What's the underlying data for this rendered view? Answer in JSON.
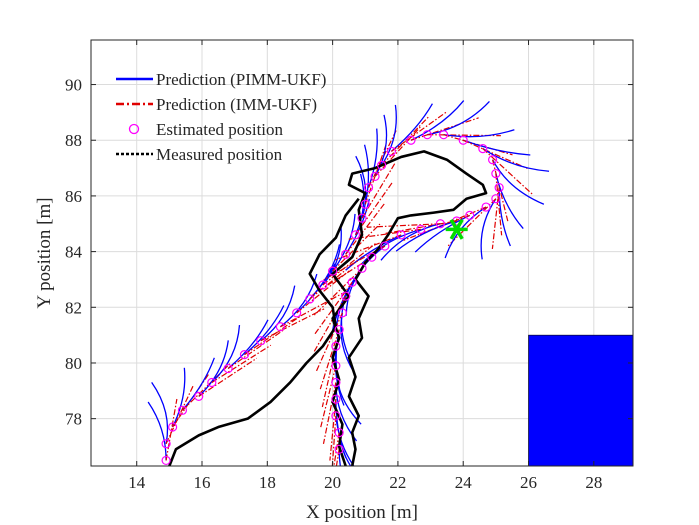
{
  "chart_data": {
    "type": "line",
    "title": "",
    "xlabel": "X position [m]",
    "ylabel": "Y position [m]",
    "xlim": [
      12.6,
      29.2
    ],
    "ylim": [
      76.3,
      91.6
    ],
    "xticks": [
      14,
      16,
      18,
      20,
      22,
      24,
      26,
      28
    ],
    "yticks": [
      78,
      80,
      82,
      84,
      86,
      88,
      90
    ],
    "grid": true,
    "legend_position": "top-left",
    "colors": {
      "pimm": "#0000ff",
      "imm": "#e00000",
      "estimated": "#ff00ff",
      "measured": "#000000",
      "marker_star": "#00dd00",
      "obstacle": "#0000ff"
    },
    "legend": [
      {
        "key": "pimm",
        "label": "Prediction (PIMM-UKF)",
        "style": "solid"
      },
      {
        "key": "imm",
        "label": "Prediction (IMM-UKF)",
        "style": "dashdot"
      },
      {
        "key": "estimated",
        "label": "Estimated position",
        "style": "circle"
      },
      {
        "key": "measured",
        "label": "Measured position",
        "style": "dotted"
      }
    ],
    "estimated_positions": [
      [
        14.9,
        76.5
      ],
      [
        14.9,
        77.1
      ],
      [
        15.1,
        77.7
      ],
      [
        15.4,
        78.3
      ],
      [
        15.9,
        78.8
      ],
      [
        16.3,
        79.3
      ],
      [
        16.8,
        79.8
      ],
      [
        17.3,
        80.3
      ],
      [
        17.8,
        80.8
      ],
      [
        18.4,
        81.3
      ],
      [
        18.9,
        81.8
      ],
      [
        19.3,
        82.3
      ],
      [
        19.7,
        82.8
      ],
      [
        20.0,
        83.3
      ],
      [
        20.4,
        83.9
      ],
      [
        20.7,
        84.6
      ],
      [
        20.9,
        85.2
      ],
      [
        21.0,
        85.7
      ],
      [
        21.1,
        86.3
      ],
      [
        21.3,
        86.7
      ],
      [
        21.5,
        87.1
      ],
      [
        21.8,
        87.6
      ],
      [
        22.4,
        88.0
      ],
      [
        22.9,
        88.2
      ],
      [
        23.4,
        88.2
      ],
      [
        24.0,
        88.0
      ],
      [
        24.6,
        87.7
      ],
      [
        24.9,
        87.3
      ],
      [
        25.0,
        86.8
      ],
      [
        25.1,
        86.3
      ],
      [
        25.0,
        85.9
      ],
      [
        24.7,
        85.6
      ],
      [
        24.2,
        85.3
      ],
      [
        23.8,
        85.1
      ],
      [
        23.3,
        85.0
      ],
      [
        22.7,
        84.8
      ],
      [
        22.1,
        84.6
      ],
      [
        21.6,
        84.2
      ],
      [
        21.2,
        83.8
      ],
      [
        20.9,
        83.4
      ],
      [
        20.6,
        82.9
      ],
      [
        20.4,
        82.4
      ],
      [
        20.3,
        81.8
      ],
      [
        20.2,
        81.2
      ],
      [
        20.1,
        80.6
      ],
      [
        20.1,
        79.9
      ],
      [
        20.1,
        79.3
      ],
      [
        20.1,
        78.7
      ],
      [
        20.1,
        78.1
      ],
      [
        20.2,
        77.5
      ],
      [
        20.2,
        76.9
      ]
    ],
    "measured_outer": [
      [
        20.4,
        76.3
      ],
      [
        20.2,
        77.0
      ],
      [
        20.3,
        77.8
      ],
      [
        20.0,
        78.6
      ],
      [
        20.2,
        79.4
      ],
      [
        20.0,
        80.2
      ],
      [
        20.2,
        80.9
      ],
      [
        20.0,
        81.6
      ],
      [
        20.5,
        82.4
      ],
      [
        20.0,
        83.2
      ],
      [
        20.6,
        83.8
      ],
      [
        20.9,
        84.6
      ],
      [
        20.8,
        85.5
      ],
      [
        21.0,
        86.1
      ],
      [
        20.5,
        86.4
      ],
      [
        20.6,
        86.8
      ],
      [
        21.3,
        87.0
      ],
      [
        22.1,
        87.4
      ],
      [
        22.8,
        87.6
      ],
      [
        23.5,
        87.3
      ],
      [
        24.1,
        86.8
      ],
      [
        24.6,
        86.4
      ],
      [
        24.7,
        86.1
      ],
      [
        24.1,
        85.9
      ],
      [
        23.7,
        85.5
      ],
      [
        23.1,
        85.4
      ],
      [
        22.4,
        85.3
      ],
      [
        22.0,
        85.2
      ],
      [
        21.7,
        84.6
      ],
      [
        21.4,
        84.1
      ],
      [
        21.0,
        83.6
      ],
      [
        20.7,
        83.0
      ],
      [
        21.1,
        82.4
      ],
      [
        20.8,
        81.6
      ],
      [
        20.9,
        80.9
      ],
      [
        20.5,
        80.2
      ],
      [
        20.7,
        79.5
      ],
      [
        20.5,
        78.8
      ],
      [
        20.8,
        78.1
      ],
      [
        20.6,
        77.5
      ],
      [
        20.7,
        76.9
      ],
      [
        20.6,
        76.3
      ]
    ],
    "measured_inner": [
      [
        15.0,
        76.3
      ],
      [
        15.2,
        76.9
      ],
      [
        15.9,
        77.4
      ],
      [
        16.5,
        77.7
      ],
      [
        17.4,
        78.0
      ],
      [
        18.1,
        78.6
      ],
      [
        18.7,
        79.3
      ],
      [
        19.2,
        80.0
      ],
      [
        19.7,
        80.6
      ],
      [
        20.1,
        81.3
      ],
      [
        20.0,
        82.0
      ],
      [
        19.6,
        82.6
      ],
      [
        19.3,
        83.2
      ],
      [
        19.6,
        83.9
      ],
      [
        20.1,
        84.5
      ],
      [
        20.4,
        85.3
      ],
      [
        20.8,
        85.9
      ]
    ],
    "measurement_star": [
      23.8,
      84.8
    ],
    "obstacle": {
      "x": [
        26.0,
        29.2
      ],
      "y": [
        76.3,
        81.0
      ]
    }
  }
}
